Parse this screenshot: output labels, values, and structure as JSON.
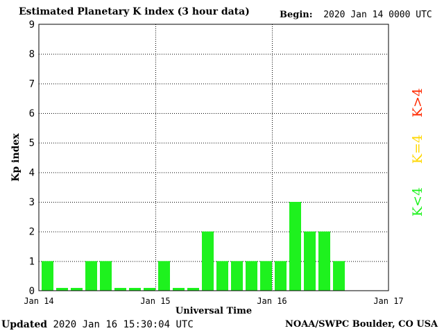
{
  "header": {
    "title": "Estimated Planetary K index (3 hour data)",
    "begin_label": "Begin:",
    "begin_value": "2020 Jan 14 0000 UTC"
  },
  "footer": {
    "updated_label": "Updated",
    "updated_value": "2020 Jan 16 15:30:04 UTC",
    "source": "NOAA/SWPC Boulder, CO USA"
  },
  "legend": {
    "items": [
      {
        "label": "K>4",
        "color": "#ff2a00"
      },
      {
        "label": "K=4",
        "color": "#ffd700"
      },
      {
        "label": "K<4",
        "color": "#1ef21e"
      }
    ]
  },
  "chart_data": {
    "type": "bar",
    "title": "Estimated Planetary K index (3 hour data)",
    "xlabel": "Universal Time",
    "ylabel": "Kp index",
    "ylim": [
      0,
      9
    ],
    "yticks": [
      "0",
      "1",
      "2",
      "3",
      "4",
      "5",
      "6",
      "7",
      "8",
      "9"
    ],
    "xticks": [
      "Jan 14",
      "Jan 15",
      "Jan 16",
      "Jan 17"
    ],
    "grid": true,
    "colors": {
      "below_4": "#1ef21e",
      "equal_4": "#ffd700",
      "above_4": "#ff2a00"
    },
    "x": [
      "2020-01-14 00:00",
      "2020-01-14 03:00",
      "2020-01-14 06:00",
      "2020-01-14 09:00",
      "2020-01-14 12:00",
      "2020-01-14 15:00",
      "2020-01-14 18:00",
      "2020-01-14 21:00",
      "2020-01-15 00:00",
      "2020-01-15 03:00",
      "2020-01-15 06:00",
      "2020-01-15 09:00",
      "2020-01-15 12:00",
      "2020-01-15 15:00",
      "2020-01-15 18:00",
      "2020-01-15 21:00",
      "2020-01-16 00:00",
      "2020-01-16 03:00",
      "2020-01-16 06:00",
      "2020-01-16 09:00",
      "2020-01-16 12:00"
    ],
    "values": [
      1,
      0,
      0,
      1,
      1,
      0,
      0,
      0,
      1,
      0,
      0,
      2,
      1,
      1,
      1,
      1,
      1,
      3,
      2,
      2,
      1
    ]
  }
}
